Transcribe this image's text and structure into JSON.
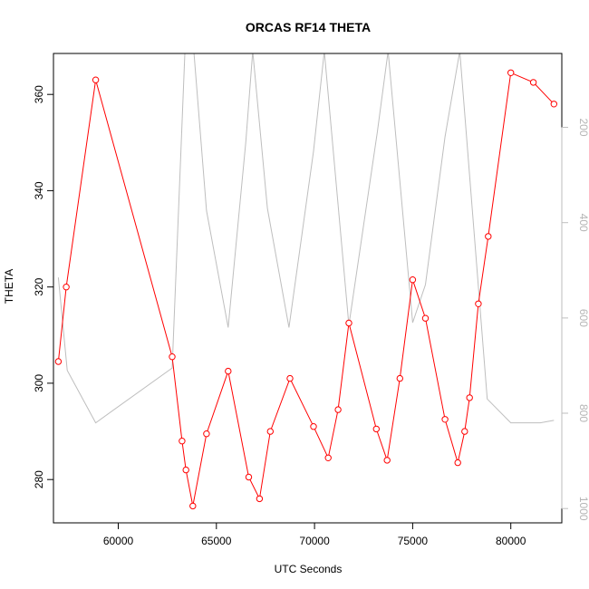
{
  "chart_data": {
    "type": "line",
    "title": "ORCAS RF14 THETA",
    "xlabel": "UTC Seconds",
    "ylabel": "THETA",
    "xlim": [
      56700,
      82600
    ],
    "ylim": [
      271,
      368.5
    ],
    "y2lim": [
      1030,
      45
    ],
    "x_ticks": [
      60000,
      65000,
      70000,
      75000,
      80000
    ],
    "y_ticks": [
      280,
      300,
      320,
      340,
      360
    ],
    "y2_ticks": [
      200,
      400,
      600,
      800,
      1000
    ],
    "colors": {
      "theta": "#ff0000",
      "secondary": "#bebebe"
    },
    "grid": false,
    "series": [
      {
        "axis": "left",
        "markers": true,
        "x": [
          56950,
          57350,
          58850,
          62750,
          63250,
          63450,
          63800,
          64500,
          65600,
          66650,
          67200,
          67750,
          68750,
          69950,
          70700,
          71200,
          71750,
          73150,
          73700,
          74350,
          75000,
          75650,
          76650,
          77300,
          77650,
          77900,
          78350,
          78850,
          80000,
          81150,
          82200
        ],
        "values": [
          304.5,
          320,
          363,
          305.5,
          288,
          282,
          274.5,
          289.5,
          302.5,
          280.5,
          276,
          290,
          301,
          291,
          284.5,
          294.5,
          312.5,
          290.5,
          284,
          301,
          321.5,
          313.5,
          292.5,
          283.5,
          290,
          297,
          316.5,
          330.5,
          364.5,
          362.5,
          358
        ]
      },
      {
        "axis": "right",
        "markers": false,
        "x": [
          56950,
          57400,
          58850,
          62750,
          63400,
          63850,
          64500,
          65600,
          66500,
          66850,
          67600,
          68700,
          69950,
          70500,
          71750,
          73200,
          73750,
          75000,
          75650,
          76650,
          77400,
          78800,
          80000,
          81500,
          82200
        ],
        "values": [
          515,
          710,
          820,
          705,
          40,
          40,
          375,
          620,
          230,
          40,
          370,
          620,
          250,
          40,
          615,
          210,
          40,
          610,
          530,
          220,
          40,
          770,
          820,
          820,
          815
        ]
      }
    ]
  }
}
